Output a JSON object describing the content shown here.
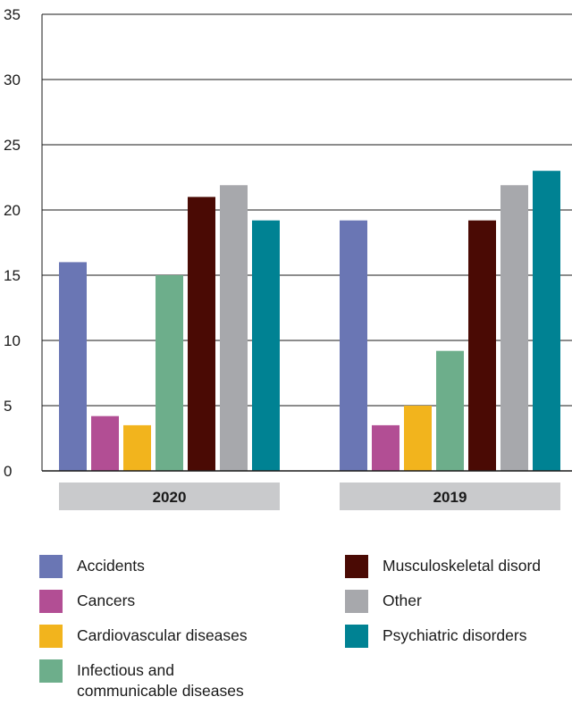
{
  "chart_data": {
    "type": "bar",
    "title": "",
    "xlabel": "",
    "ylabel": "",
    "ylim": [
      0,
      35
    ],
    "yticks": [
      0,
      5,
      10,
      15,
      20,
      25,
      30,
      35
    ],
    "grid": true,
    "legend_position": "bottom",
    "categories": [
      "2020",
      "2019"
    ],
    "series": [
      {
        "name": "Accidents",
        "color": "#6A76B4",
        "values": [
          16,
          19.2
        ]
      },
      {
        "name": "Cancers",
        "color": "#B24E94",
        "values": [
          4.2,
          3.5
        ]
      },
      {
        "name": "Cardiovascular diseases",
        "color": "#F2B41D",
        "values": [
          3.5,
          5
        ]
      },
      {
        "name": "Infectious and\ncommunicable diseases",
        "color": "#6DAE8B",
        "values": [
          15,
          9.2
        ]
      },
      {
        "name": "Musculoskeletal disord",
        "color": "#4A0A04",
        "values": [
          21,
          19.2
        ]
      },
      {
        "name": "Other",
        "color": "#A7A8AC",
        "values": [
          21.9,
          21.9
        ]
      },
      {
        "name": "Psychiatric disorders",
        "color": "#008293",
        "values": [
          19.2,
          23
        ]
      }
    ]
  }
}
